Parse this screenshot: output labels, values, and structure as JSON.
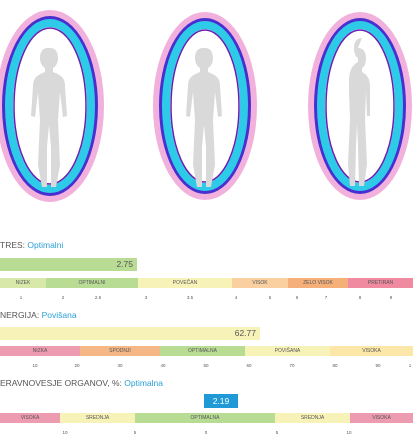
{
  "aura_figures": [
    {
      "icon": "aura-front-view-icon"
    },
    {
      "icon": "aura-back-view-icon"
    },
    {
      "icon": "aura-side-view-icon"
    }
  ],
  "stres": {
    "label": "TRES:",
    "status": "Optimalni",
    "value": "2.75",
    "value_fraction": 0.437,
    "segments": [
      {
        "label": "NIZEK",
        "color": "#d8e8a8"
      },
      {
        "label": "OPTIMALNI",
        "color": "#b8dc94"
      },
      {
        "label": "POVEČAN",
        "color": "#f7f3b8"
      },
      {
        "label": "VISOK",
        "color": "#fad0a0"
      },
      {
        "label": "ZELO VISOK",
        "color": "#f5b07a"
      },
      {
        "label": "PRETIRAN",
        "color": "#f08aa0"
      }
    ],
    "ticks": [
      "1",
      "2",
      "2.5",
      "3",
      "3.5",
      "4",
      "5",
      "6",
      "7",
      "8",
      "9"
    ]
  },
  "energija": {
    "label": "NERGIJA:",
    "status": "Povišana",
    "value": "62.77",
    "value_fraction": 0.655,
    "segments": [
      {
        "label": "NIZKA",
        "color": "#ec9bb0"
      },
      {
        "label": "SPODNJI",
        "color": "#f5b786"
      },
      {
        "label": "OPTIMALNA",
        "color": "#b8dc94"
      },
      {
        "label": "POVIŠANA",
        "color": "#f7f3b8"
      },
      {
        "label": "VISOKA",
        "color": "#fbe7a8"
      }
    ],
    "ticks": [
      "10",
      "20",
      "30",
      "40",
      "50",
      "60",
      "70",
      "80",
      "90",
      "1"
    ]
  },
  "neravnovesje": {
    "label": "ERAVNOVESJE ORGANOV, %:",
    "status": "Optimalna",
    "value": "2.19",
    "segments": [
      {
        "label": "VISOKA",
        "color": "#ec9bb0"
      },
      {
        "label": "SREDNJA",
        "color": "#f7f3b8"
      },
      {
        "label": "OPTIMALNA",
        "color": "#b8dc94"
      },
      {
        "label": "SREDNJA",
        "color": "#f7f3b8"
      },
      {
        "label": "VISOKA",
        "color": "#ec9bb0"
      }
    ],
    "ticks": [
      "10",
      "5",
      "0",
      "5",
      "10"
    ]
  }
}
